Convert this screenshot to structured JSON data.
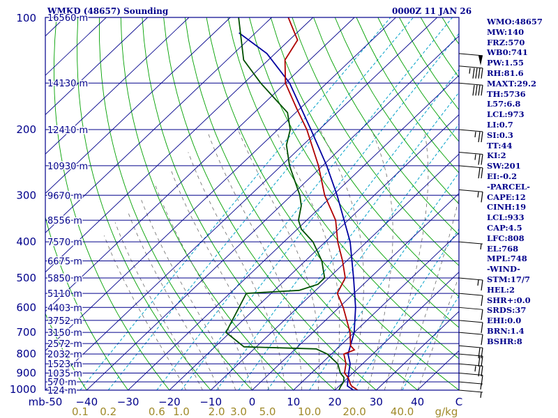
{
  "header": {
    "station": "WMKD (48657) Sounding",
    "time": "0000Z 11 JAN 26"
  },
  "indices": [
    "WMO:48657",
    "MW:140",
    "FRZ:570",
    "WB0:741",
    "PW:1.55",
    "RH:81.6",
    "MAXT:29.2",
    "TH:5736",
    "L57:6.8",
    "LCL:973",
    "LI:0.7",
    "SI:0.3",
    "TT:44",
    "KI:2",
    "SW:201",
    "EI:-0.2",
    "-PARCEL-",
    "CAPE:12",
    "CINH:19",
    "LCL:933",
    "CAP:4.5",
    "LFC:808",
    "EL:768",
    "MPL:748",
    "-WIND-",
    "STM:17/7",
    "HEL:2",
    "SHR+:0.0",
    "SRDS:37",
    "EHI:0.0",
    "BRN:1.4",
    "BSHR:8"
  ],
  "colors": {
    "frame": "#00008b",
    "isobar": "#00008b",
    "isotherm": "#00008b",
    "dry_adiabat": "#00a000",
    "moist_adiabat": "#6a6a6a",
    "mixing_ratio": "#00a0c8",
    "temperature": "#b00000",
    "dewpoint": "#005000",
    "parcel": "#0000a0",
    "mixing_label": "#a08a2a"
  },
  "chart_data": {
    "type": "skew-t",
    "title": "WMKD (48657) Sounding",
    "valid_time": "0000Z 11 JAN 26",
    "pressure_unit": "mb",
    "temperature_unit": "C",
    "mixing_ratio_unit": "g/kg",
    "p_range": [
      100,
      1000
    ],
    "t_range_at_1000": [
      -50,
      50
    ],
    "pressure_labels": [
      {
        "p": 100,
        "label": "100"
      },
      {
        "p": 200,
        "label": "200"
      },
      {
        "p": 300,
        "label": "300"
      },
      {
        "p": 400,
        "label": "400"
      },
      {
        "p": 500,
        "label": "500"
      },
      {
        "p": 600,
        "label": "600"
      },
      {
        "p": 700,
        "label": "700"
      },
      {
        "p": 800,
        "label": "800"
      },
      {
        "p": 900,
        "label": "900"
      },
      {
        "p": 1000,
        "label": "1000"
      }
    ],
    "heights": [
      {
        "p": 100,
        "label": "16560 m"
      },
      {
        "p": 150,
        "label": "14130 m"
      },
      {
        "p": 200,
        "label": "12410 m"
      },
      {
        "p": 250,
        "label": "10930 m"
      },
      {
        "p": 300,
        "label": "9670 m"
      },
      {
        "p": 350,
        "label": "8556 m"
      },
      {
        "p": 400,
        "label": "7570 m"
      },
      {
        "p": 450,
        "label": "6675 m"
      },
      {
        "p": 500,
        "label": "5850 m"
      },
      {
        "p": 550,
        "label": "5110 m"
      },
      {
        "p": 600,
        "label": "4403 m"
      },
      {
        "p": 650,
        "label": "3752 m"
      },
      {
        "p": 700,
        "label": "3150 m"
      },
      {
        "p": 750,
        "label": "2572 m"
      },
      {
        "p": 800,
        "label": "2032 m"
      },
      {
        "p": 850,
        "label": "1523 m"
      },
      {
        "p": 900,
        "label": "1035 m"
      },
      {
        "p": 950,
        "label": "570 m"
      },
      {
        "p": 1000,
        "label": "124 m"
      }
    ],
    "temp_axis_labels": [
      {
        "t": -50,
        "label": "mb-50"
      },
      {
        "t": -40,
        "label": "−40"
      },
      {
        "t": -30,
        "label": "−30"
      },
      {
        "t": -20,
        "label": "−20"
      },
      {
        "t": -10,
        "label": "−10"
      },
      {
        "t": 0,
        "label": "0"
      },
      {
        "t": 10,
        "label": "10"
      },
      {
        "t": 20,
        "label": "20"
      },
      {
        "t": 30,
        "label": "30"
      },
      {
        "t": 40,
        "label": "40"
      },
      {
        "t": 50,
        "label": "C"
      }
    ],
    "mixing_ratio_lines": [
      0.1,
      0.2,
      0.6,
      1.0,
      2.0,
      3.0,
      5.0,
      10.0,
      20.0,
      40.0
    ],
    "mixing_ratio_labels": [
      {
        "w": 0.1,
        "label": "0.1"
      },
      {
        "w": 0.2,
        "label": "0.2"
      },
      {
        "w": 0.6,
        "label": "0.6"
      },
      {
        "w": 1.0,
        "label": "1.0"
      },
      {
        "w": 2.0,
        "label": "2.0"
      },
      {
        "w": 3.0,
        "label": "3.0"
      },
      {
        "w": 5.0,
        "label": "5.0"
      },
      {
        "w": 10.0,
        "label": "10.0"
      },
      {
        "w": 20.0,
        "label": "20.0"
      },
      {
        "w": 40.0,
        "label": "40.0"
      },
      {
        "w": 90.0,
        "label": "g/kg"
      }
    ],
    "temperature": [
      {
        "p": 1000,
        "t": 25.5
      },
      {
        "p": 975,
        "t": 23.0
      },
      {
        "p": 960,
        "t": 22.0
      },
      {
        "p": 950,
        "t": 21.5
      },
      {
        "p": 925,
        "t": 20.0
      },
      {
        "p": 900,
        "t": 18.0
      },
      {
        "p": 850,
        "t": 16.0
      },
      {
        "p": 800,
        "t": 13.0
      },
      {
        "p": 780,
        "t": 14.5
      },
      {
        "p": 760,
        "t": 12.5
      },
      {
        "p": 700,
        "t": 9.0
      },
      {
        "p": 600,
        "t": 1.0
      },
      {
        "p": 550,
        "t": -4.0
      },
      {
        "p": 500,
        "t": -6.0
      },
      {
        "p": 450,
        "t": -11.0
      },
      {
        "p": 400,
        "t": -17.0
      },
      {
        "p": 350,
        "t": -23.0
      },
      {
        "p": 300,
        "t": -32.0
      },
      {
        "p": 250,
        "t": -41.0
      },
      {
        "p": 200,
        "t": -53.0
      },
      {
        "p": 175,
        "t": -61.0
      },
      {
        "p": 150,
        "t": -70.0
      },
      {
        "p": 130,
        "t": -76.0
      },
      {
        "p": 115,
        "t": -78.0
      },
      {
        "p": 100,
        "t": -86.0
      }
    ],
    "dewpoint": [
      {
        "p": 1000,
        "t": 21.0
      },
      {
        "p": 980,
        "t": 20.5
      },
      {
        "p": 950,
        "t": 20.0
      },
      {
        "p": 925,
        "t": 19.0
      },
      {
        "p": 900,
        "t": 17.0
      },
      {
        "p": 850,
        "t": 14.0
      },
      {
        "p": 800,
        "t": 9.0
      },
      {
        "p": 775,
        "t": 5.0
      },
      {
        "p": 765,
        "t": -13.0
      },
      {
        "p": 700,
        "t": -21.0
      },
      {
        "p": 550,
        "t": -26.0
      },
      {
        "p": 540,
        "t": -14.0
      },
      {
        "p": 520,
        "t": -11.0
      },
      {
        "p": 500,
        "t": -11.0
      },
      {
        "p": 450,
        "t": -16.0
      },
      {
        "p": 400,
        "t": -23.0
      },
      {
        "p": 370,
        "t": -29.0
      },
      {
        "p": 350,
        "t": -32.0
      },
      {
        "p": 320,
        "t": -35.0
      },
      {
        "p": 300,
        "t": -38.0
      },
      {
        "p": 250,
        "t": -48.0
      },
      {
        "p": 220,
        "t": -54.0
      },
      {
        "p": 200,
        "t": -57.0
      },
      {
        "p": 180,
        "t": -62.0
      },
      {
        "p": 150,
        "t": -76.0
      },
      {
        "p": 130,
        "t": -86.0
      },
      {
        "p": 100,
        "t": -98.0
      }
    ],
    "parcel": [
      {
        "p": 1000,
        "t": 24.5
      },
      {
        "p": 975,
        "t": 22.0
      },
      {
        "p": 950,
        "t": 21.0
      },
      {
        "p": 900,
        "t": 19.0
      },
      {
        "p": 850,
        "t": 17.0
      },
      {
        "p": 800,
        "t": 14.0
      },
      {
        "p": 700,
        "t": 10.0
      },
      {
        "p": 600,
        "t": 4.0
      },
      {
        "p": 500,
        "t": -4.0
      },
      {
        "p": 400,
        "t": -14.0
      },
      {
        "p": 300,
        "t": -29.0
      },
      {
        "p": 250,
        "t": -39.0
      },
      {
        "p": 200,
        "t": -52.0
      },
      {
        "p": 150,
        "t": -69.0
      },
      {
        "p": 125,
        "t": -82.0
      },
      {
        "p": 110,
        "t": -94.0
      }
    ],
    "wind_barbs": [
      {
        "p": 125,
        "speed_kt": 50
      },
      {
        "p": 135,
        "speed_kt": 45
      },
      {
        "p": 150,
        "speed_kt": 40
      },
      {
        "p": 200,
        "speed_kt": 25
      },
      {
        "p": 230,
        "speed_kt": 25
      },
      {
        "p": 250,
        "speed_kt": 20
      },
      {
        "p": 290,
        "speed_kt": 15
      },
      {
        "p": 400,
        "speed_kt": 5
      },
      {
        "p": 500,
        "speed_kt": 15
      },
      {
        "p": 550,
        "speed_kt": 10
      },
      {
        "p": 600,
        "speed_kt": 10
      },
      {
        "p": 650,
        "speed_kt": 10
      },
      {
        "p": 700,
        "speed_kt": 10
      },
      {
        "p": 760,
        "speed_kt": 20
      },
      {
        "p": 800,
        "speed_kt": 20
      },
      {
        "p": 850,
        "speed_kt": 25
      },
      {
        "p": 900,
        "speed_kt": 10
      },
      {
        "p": 950,
        "speed_kt": 5
      },
      {
        "p": 1000,
        "speed_kt": 5
      }
    ]
  }
}
